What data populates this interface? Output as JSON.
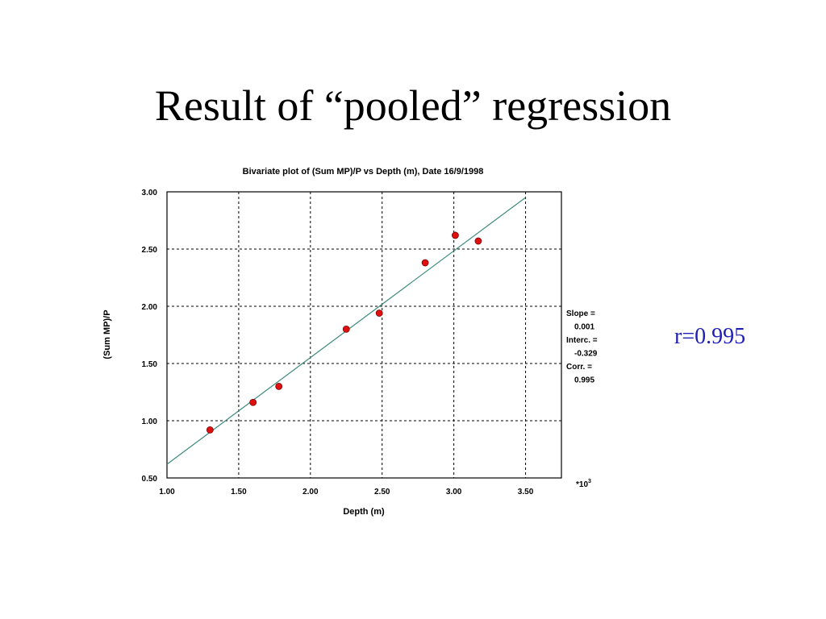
{
  "slide": {
    "title": "Result of “pooled” regression",
    "annotation": "r=0.995"
  },
  "colors": {
    "point": "#e01010",
    "regression_line": "#3a8a7a",
    "annotation": "#1f1fb4"
  },
  "chart_data": {
    "type": "scatter",
    "title": "Bivariate plot of (Sum MP)/P vs Depth (m), Date 16/9/1998",
    "xlabel": "Depth (m)",
    "ylabel": "(Sum MP)/P",
    "x_multiplier": "*10",
    "x_multiplier_exp": "3",
    "xlim": [
      1.0,
      3.75
    ],
    "ylim": [
      0.5,
      3.0
    ],
    "xticks": [
      "1.00",
      "1.50",
      "2.00",
      "2.50",
      "3.00",
      "3.50"
    ],
    "yticks": [
      "0.50",
      "1.00",
      "1.50",
      "2.00",
      "2.50",
      "3.00"
    ],
    "grid": true,
    "grid_style": "dotted",
    "points": [
      {
        "x": 1.3,
        "y": 0.92
      },
      {
        "x": 1.6,
        "y": 1.16
      },
      {
        "x": 1.78,
        "y": 1.3
      },
      {
        "x": 2.25,
        "y": 1.8
      },
      {
        "x": 2.48,
        "y": 1.94
      },
      {
        "x": 2.8,
        "y": 2.38
      },
      {
        "x": 3.01,
        "y": 2.62
      },
      {
        "x": 3.17,
        "y": 2.57
      }
    ],
    "regression_line": {
      "x": [
        1.0,
        3.5
      ],
      "y": [
        0.62,
        2.95
      ]
    },
    "stats": [
      "Slope =",
      "0.001",
      "Interc. =",
      "-0.329",
      "Corr. =",
      "0.995"
    ]
  }
}
